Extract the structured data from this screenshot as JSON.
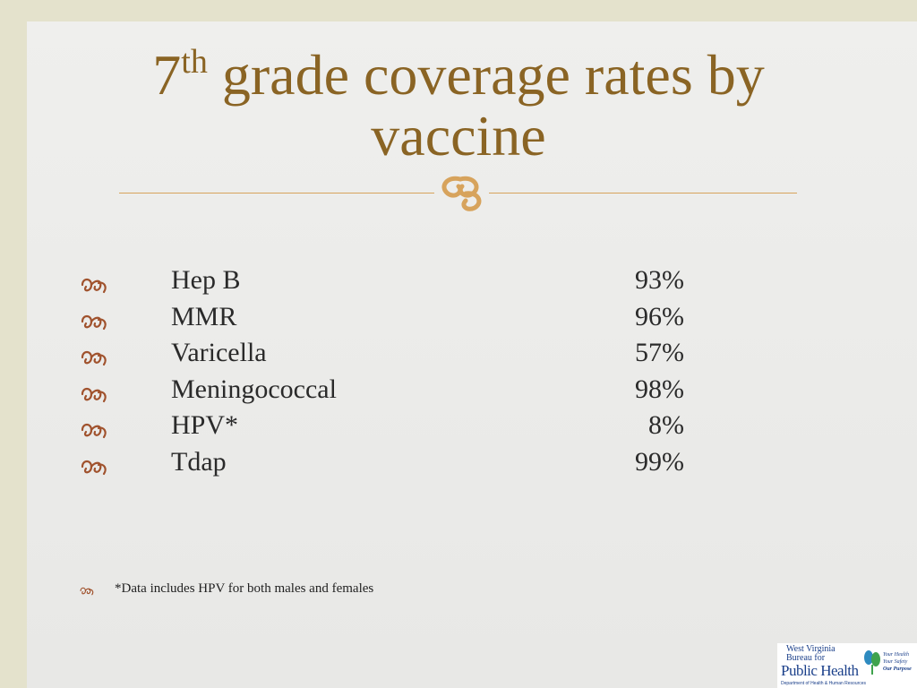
{
  "title": {
    "number": "7",
    "superscript": "th",
    "line1_rest": " grade coverage rates by",
    "line2": "vaccine"
  },
  "icons": {
    "divider": "ornament-swash-icon",
    "bullet": "ornament-swash-icon"
  },
  "colors": {
    "title": "#8a6424",
    "accent": "#d7a35c",
    "bullet": "#a0522d",
    "background": "#e4e2cc"
  },
  "vaccines": [
    {
      "name": "Hep B",
      "rate": "93%"
    },
    {
      "name": "MMR",
      "rate": "96%"
    },
    {
      "name": "Varicella",
      "rate": "57%"
    },
    {
      "name": "Meningococcal",
      "rate": "98%"
    },
    {
      "name": "HPV*",
      "rate": "8%"
    },
    {
      "name": "Tdap",
      "rate": "99%"
    }
  ],
  "footnote": "*Data includes HPV for both males and females",
  "logo": {
    "line1": "West Virginia",
    "line2": "Bureau for",
    "line3": "Public Health",
    "department": "Department of Health & Human Resources",
    "tagline1": "Your Health",
    "tagline2": "Your Safety",
    "tagline3": "Our Purpose"
  }
}
